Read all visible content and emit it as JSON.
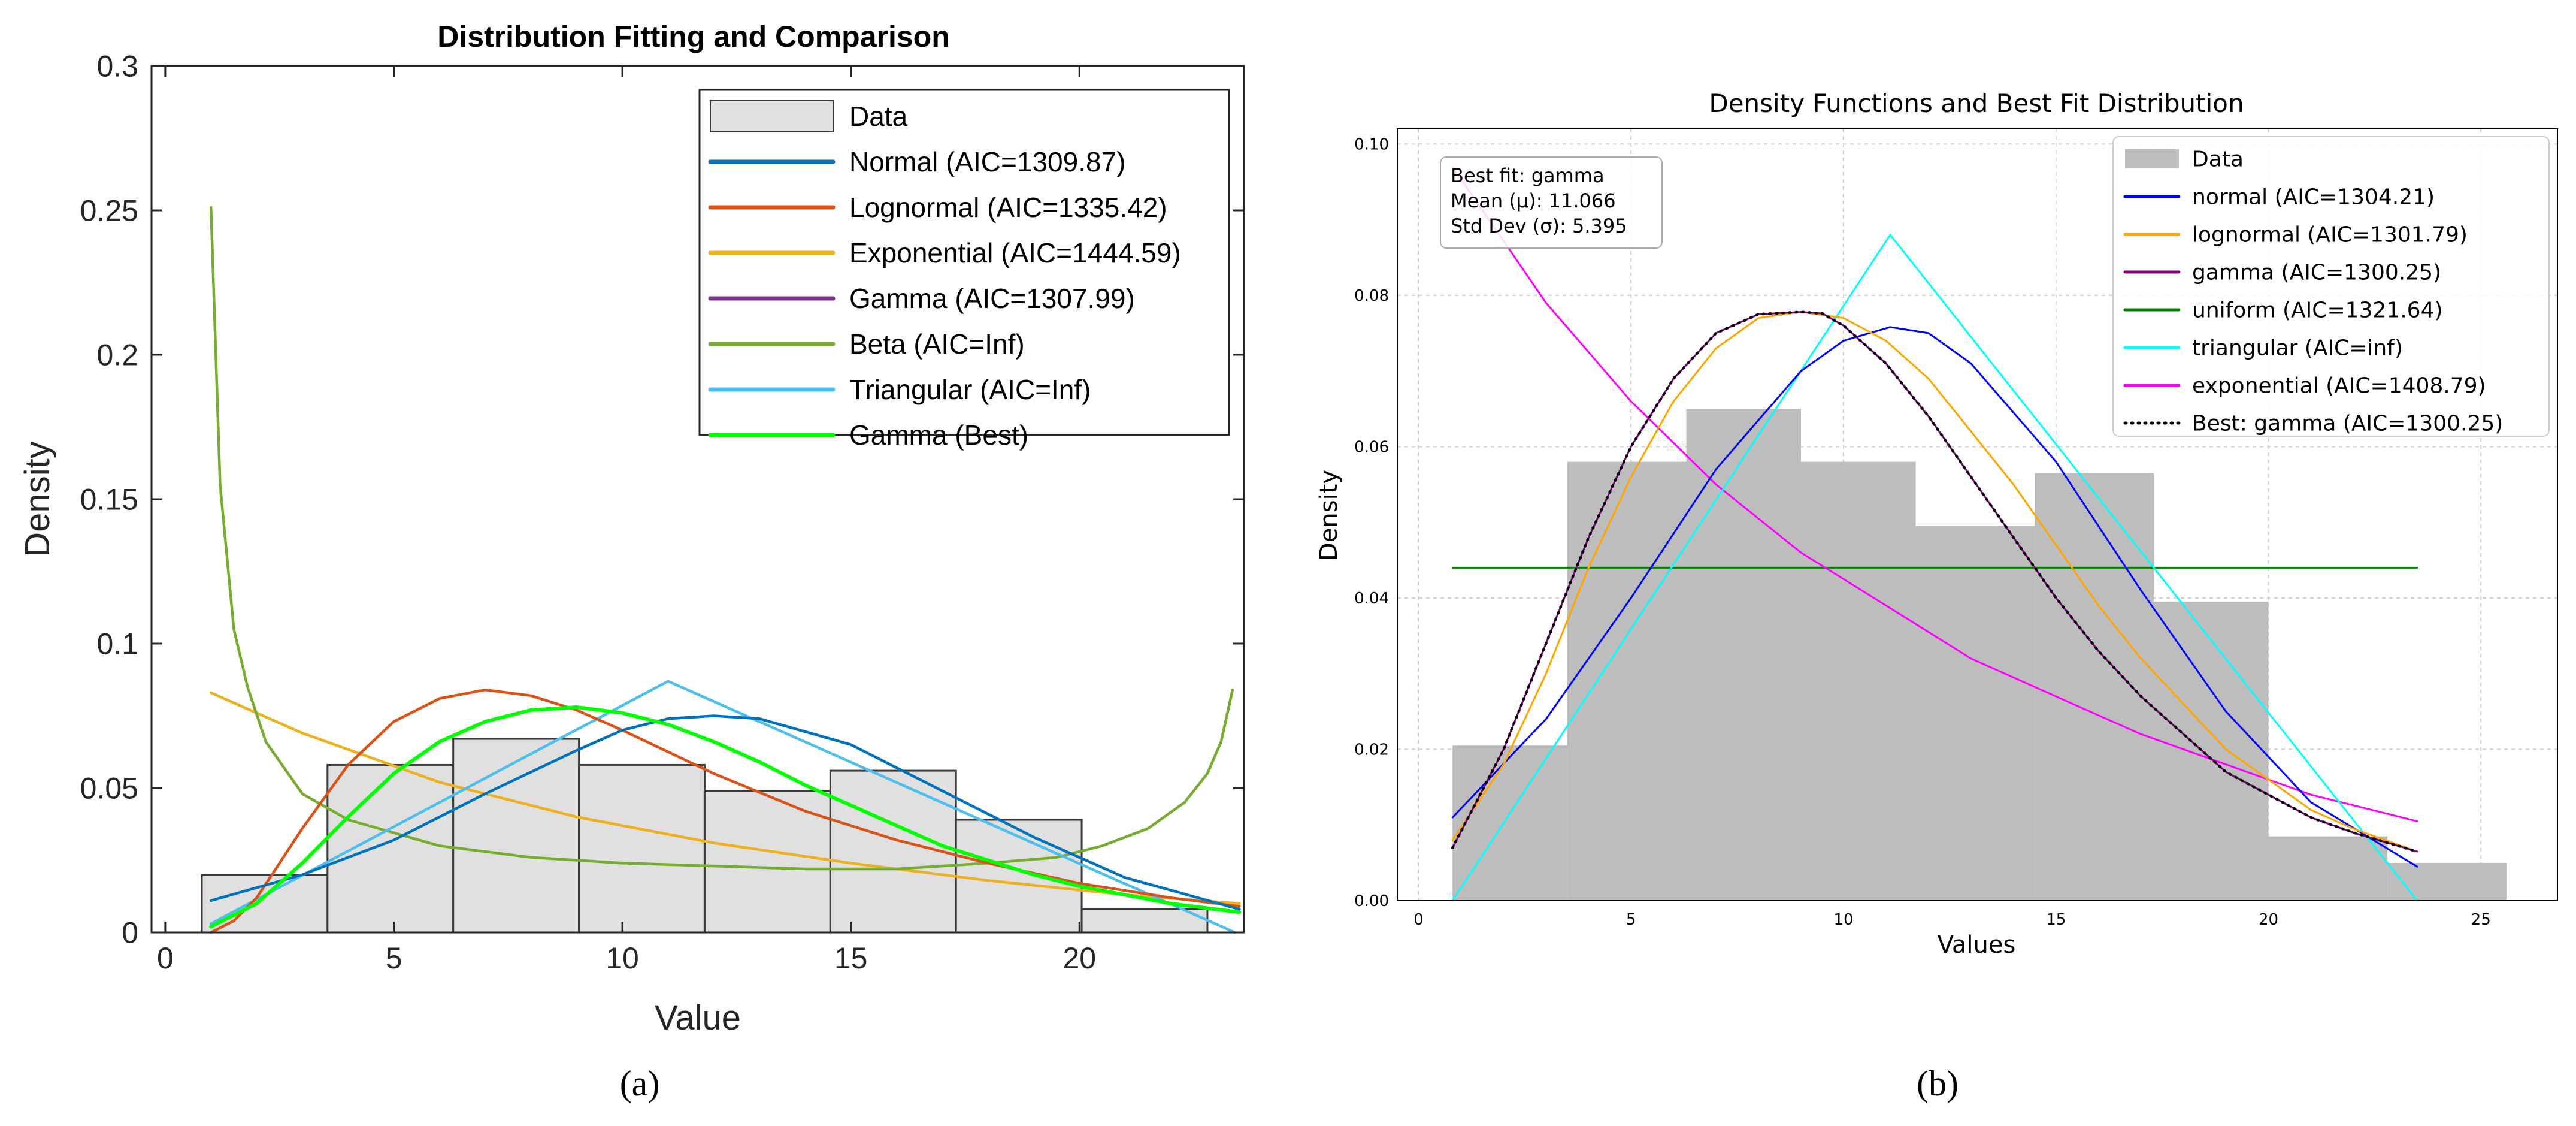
{
  "captions": {
    "a": "(a)",
    "b": "(b)"
  },
  "chart_data": [
    {
      "type": "histogram+line",
      "title": "Distribution Fitting and Comparison",
      "xlabel": "Value",
      "ylabel": "Density",
      "xlim": [
        -0.3,
        23.6
      ],
      "ylim": [
        0,
        0.3
      ],
      "xticks": [
        0,
        5,
        10,
        15,
        20
      ],
      "yticks": [
        0,
        0.05,
        0.1,
        0.15,
        0.2,
        0.25,
        0.3
      ],
      "ytick_labels": [
        "0",
        "0.05",
        "0.1",
        "0.15",
        "0.2",
        "0.25",
        "0.3"
      ],
      "bar_color": "#e0e0e0",
      "bars": [
        {
          "x0": 0.8,
          "x1": 3.55,
          "value": 0.02
        },
        {
          "x0": 3.55,
          "x1": 6.3,
          "value": 0.058
        },
        {
          "x0": 6.3,
          "x1": 9.05,
          "value": 0.067
        },
        {
          "x0": 9.05,
          "x1": 11.8,
          "value": 0.058
        },
        {
          "x0": 11.8,
          "x1": 14.55,
          "value": 0.049
        },
        {
          "x0": 14.55,
          "x1": 17.3,
          "value": 0.056
        },
        {
          "x0": 17.3,
          "x1": 20.05,
          "value": 0.039
        },
        {
          "x0": 20.05,
          "x1": 22.8,
          "value": 0.008
        }
      ],
      "legend_entries": [
        {
          "label": "Data",
          "color": "#e0e0e0",
          "kind": "patch"
        },
        {
          "label": "Normal (AIC=1309.87)",
          "color": "#0072bd",
          "kind": "line"
        },
        {
          "label": "Lognormal (AIC=1335.42)",
          "color": "#d95319",
          "kind": "line"
        },
        {
          "label": "Exponential (AIC=1444.59)",
          "color": "#edb120",
          "kind": "line"
        },
        {
          "label": "Gamma (AIC=1307.99)",
          "color": "#7e2f8e",
          "kind": "line"
        },
        {
          "label": "Beta (AIC=Inf)",
          "color": "#77ac30",
          "kind": "line"
        },
        {
          "label": "Triangular (AIC=Inf)",
          "color": "#4dbeee",
          "kind": "line"
        },
        {
          "label": "Gamma (Best)",
          "color": "#00ff00",
          "kind": "line"
        }
      ],
      "series": [
        {
          "name": "Exponential",
          "color": "#edb120",
          "width": 4.5,
          "x": [
            1,
            3,
            6,
            9,
            12,
            15,
            18,
            21,
            23.5
          ],
          "y": [
            0.083,
            0.069,
            0.052,
            0.04,
            0.031,
            0.024,
            0.018,
            0.013,
            0.01
          ]
        },
        {
          "name": "Beta",
          "color": "#77ac30",
          "width": 4.5,
          "x": [
            1,
            1.2,
            1.5,
            1.8,
            2.2,
            3,
            4,
            6,
            8,
            10,
            12,
            14,
            16,
            18,
            19.5,
            20.5,
            21.5,
            22.3,
            22.8,
            23.1,
            23.35
          ],
          "y": [
            0.251,
            0.155,
            0.105,
            0.085,
            0.066,
            0.048,
            0.039,
            0.03,
            0.026,
            0.024,
            0.023,
            0.022,
            0.022,
            0.024,
            0.026,
            0.03,
            0.036,
            0.045,
            0.055,
            0.066,
            0.084
          ]
        },
        {
          "name": "Triangular",
          "color": "#4dbeee",
          "width": 4.5,
          "x": [
            1,
            11,
            23.4
          ],
          "y": [
            0.003,
            0.087,
            0.0
          ]
        },
        {
          "name": "Lognormal",
          "color": "#d95319",
          "width": 4.5,
          "x": [
            1,
            1.5,
            2,
            3,
            4,
            5,
            6,
            7,
            8,
            9,
            10,
            12,
            14,
            16,
            18,
            20,
            22,
            23.5
          ],
          "y": [
            0.0,
            0.004,
            0.012,
            0.036,
            0.058,
            0.073,
            0.081,
            0.084,
            0.082,
            0.077,
            0.07,
            0.055,
            0.042,
            0.032,
            0.024,
            0.017,
            0.012,
            0.009
          ]
        },
        {
          "name": "Normal",
          "color": "#0072bd",
          "width": 4.5,
          "x": [
            1,
            3,
            5,
            7,
            9,
            10,
            11,
            12,
            13,
            15,
            17,
            19,
            21,
            23.5
          ],
          "y": [
            0.011,
            0.02,
            0.032,
            0.048,
            0.063,
            0.07,
            0.074,
            0.075,
            0.074,
            0.065,
            0.049,
            0.033,
            0.019,
            0.008
          ]
        },
        {
          "name": "Gamma",
          "color": "#7e2f8e",
          "width": 4.5,
          "x": [
            1,
            2,
            3,
            4,
            5,
            6,
            7,
            8,
            9,
            10,
            11,
            12,
            13,
            14,
            15,
            16,
            17,
            18,
            19,
            20,
            21,
            22,
            23.5
          ],
          "y": [
            0.002,
            0.01,
            0.024,
            0.04,
            0.055,
            0.066,
            0.073,
            0.077,
            0.078,
            0.076,
            0.072,
            0.066,
            0.059,
            0.051,
            0.044,
            0.037,
            0.03,
            0.025,
            0.02,
            0.016,
            0.013,
            0.01,
            0.007
          ]
        },
        {
          "name": "Gamma (Best)",
          "color": "#00ff00",
          "width": 6,
          "x": [
            1,
            2,
            3,
            4,
            5,
            6,
            7,
            8,
            9,
            10,
            11,
            12,
            13,
            14,
            15,
            16,
            17,
            18,
            19,
            20,
            21,
            22,
            23.5
          ],
          "y": [
            0.002,
            0.01,
            0.024,
            0.04,
            0.055,
            0.066,
            0.073,
            0.077,
            0.078,
            0.076,
            0.072,
            0.066,
            0.059,
            0.051,
            0.044,
            0.037,
            0.03,
            0.025,
            0.02,
            0.016,
            0.013,
            0.01,
            0.007
          ]
        }
      ]
    },
    {
      "type": "histogram+line",
      "title": "Density Functions and Best Fit Distribution",
      "xlabel": "Values",
      "ylabel": "Density",
      "xlim": [
        -0.5,
        26.8
      ],
      "ylim": [
        0,
        0.102
      ],
      "xticks": [
        0,
        5,
        10,
        15,
        20,
        25
      ],
      "yticks": [
        0,
        0.02,
        0.04,
        0.06,
        0.08,
        0.1
      ],
      "ytick_labels": [
        "0.00",
        "0.02",
        "0.04",
        "0.06",
        "0.08",
        "0.10"
      ],
      "grid": true,
      "bar_color": "#bdbdbd",
      "bars": [
        {
          "x0": 0.8,
          "x1": 3.5,
          "value": 0.0205
        },
        {
          "x0": 3.5,
          "x1": 6.3,
          "value": 0.058
        },
        {
          "x0": 6.3,
          "x1": 9.0,
          "value": 0.065
        },
        {
          "x0": 9.0,
          "x1": 11.7,
          "value": 0.058
        },
        {
          "x0": 11.7,
          "x1": 14.5,
          "value": 0.0495
        },
        {
          "x0": 14.5,
          "x1": 17.3,
          "value": 0.0565
        },
        {
          "x0": 17.3,
          "x1": 20.0,
          "value": 0.0395
        },
        {
          "x0": 20.0,
          "x1": 22.8,
          "value": 0.0085
        },
        {
          "x0": 22.8,
          "x1": 25.6,
          "value": 0.005
        }
      ],
      "info_box": {
        "line1": "Best fit: gamma",
        "line2": "Mean (μ): 11.066",
        "line3": "Std Dev (σ): 5.395"
      },
      "legend_entries": [
        {
          "label": "Data",
          "color": "#bdbdbd",
          "kind": "patch"
        },
        {
          "label": "normal (AIC=1304.21)",
          "color": "#0000ff",
          "kind": "line"
        },
        {
          "label": "lognormal (AIC=1301.79)",
          "color": "#ffa500",
          "kind": "line"
        },
        {
          "label": "gamma (AIC=1300.25)",
          "color": "#800080",
          "kind": "line"
        },
        {
          "label": "uniform (AIC=1321.64)",
          "color": "#008000",
          "kind": "line"
        },
        {
          "label": "triangular (AIC=inf)",
          "color": "#00ffff",
          "kind": "line"
        },
        {
          "label": "exponential (AIC=1408.79)",
          "color": "#ff00ff",
          "kind": "line"
        },
        {
          "label": "Best: gamma (AIC=1300.25)",
          "color": "#000000",
          "kind": "dotted"
        }
      ],
      "series": [
        {
          "name": "uniform",
          "color": "#008000",
          "width": 3,
          "x": [
            0.8,
            23.5
          ],
          "y": [
            0.044,
            0.044
          ]
        },
        {
          "name": "exponential",
          "color": "#ff00ff",
          "width": 3,
          "x": [
            0.8,
            3,
            5,
            7,
            9,
            11,
            13,
            15,
            17,
            19,
            21,
            23.5
          ],
          "y": [
            0.097,
            0.079,
            0.066,
            0.055,
            0.046,
            0.039,
            0.032,
            0.027,
            0.022,
            0.018,
            0.014,
            0.0105
          ]
        },
        {
          "name": "triangular",
          "color": "#00ffff",
          "width": 3,
          "x": [
            0.8,
            11.1,
            23.5
          ],
          "y": [
            0.0,
            0.088,
            0.0
          ]
        },
        {
          "name": "normal",
          "color": "#0000ff",
          "width": 3,
          "x": [
            0.8,
            3,
            5,
            7,
            9,
            10,
            11.1,
            12,
            13,
            15,
            17,
            19,
            21,
            23.5
          ],
          "y": [
            0.011,
            0.024,
            0.04,
            0.057,
            0.07,
            0.074,
            0.0758,
            0.075,
            0.071,
            0.058,
            0.041,
            0.025,
            0.013,
            0.0045
          ]
        },
        {
          "name": "lognormal",
          "color": "#ffa500",
          "width": 3,
          "x": [
            0.8,
            2,
            3,
            4,
            5,
            6,
            7,
            8,
            9,
            10,
            11,
            12,
            13,
            14,
            15,
            16,
            17,
            18,
            19,
            20,
            21,
            22,
            23.5
          ],
          "y": [
            0.008,
            0.018,
            0.03,
            0.044,
            0.056,
            0.066,
            0.073,
            0.077,
            0.0778,
            0.077,
            0.074,
            0.069,
            0.062,
            0.055,
            0.047,
            0.039,
            0.032,
            0.026,
            0.02,
            0.016,
            0.012,
            0.0095,
            0.0065
          ]
        },
        {
          "name": "gamma",
          "color": "#800080",
          "width": 3,
          "x": [
            0.8,
            2,
            3,
            4,
            5,
            6,
            7,
            8,
            9,
            9.5,
            10,
            11,
            12,
            13,
            14,
            15,
            16,
            17,
            18,
            19,
            20,
            21,
            22,
            23.5
          ],
          "y": [
            0.007,
            0.02,
            0.034,
            0.048,
            0.06,
            0.069,
            0.075,
            0.0775,
            0.0778,
            0.0776,
            0.076,
            0.071,
            0.064,
            0.056,
            0.048,
            0.04,
            0.033,
            0.027,
            0.022,
            0.017,
            0.014,
            0.011,
            0.009,
            0.0065
          ]
        },
        {
          "name": "Best: gamma",
          "color": "#000000",
          "width": 4.5,
          "dotted": true,
          "x": [
            0.8,
            2,
            3,
            4,
            5,
            6,
            7,
            8,
            9,
            9.5,
            10,
            11,
            12,
            13,
            14,
            15,
            16,
            17,
            18,
            19,
            20,
            21,
            22,
            23.5
          ],
          "y": [
            0.007,
            0.02,
            0.034,
            0.048,
            0.06,
            0.069,
            0.075,
            0.0775,
            0.0778,
            0.0776,
            0.076,
            0.071,
            0.064,
            0.056,
            0.048,
            0.04,
            0.033,
            0.027,
            0.022,
            0.017,
            0.014,
            0.011,
            0.009,
            0.0065
          ]
        }
      ]
    }
  ]
}
